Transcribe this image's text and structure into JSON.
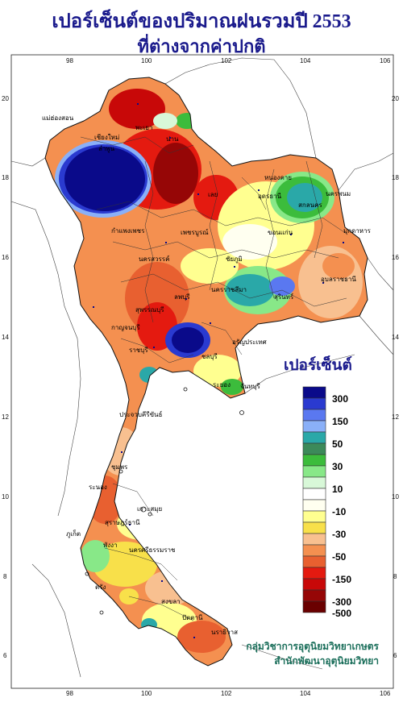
{
  "title": {
    "line1": "เปอร์เซ็นต์ของปริมาณฝนรวมปี  2553",
    "line2": "ที่ต่างจากค่าปกติ"
  },
  "axes": {
    "top_ticks": [
      "98",
      "100",
      "102",
      "104",
      "106"
    ],
    "bottom_ticks": [
      "98",
      "100",
      "102",
      "104",
      "106"
    ],
    "left_ticks": [
      "20",
      "18",
      "16",
      "14",
      "12",
      "10",
      "8",
      "6"
    ],
    "right_ticks": [
      "20",
      "18",
      "16",
      "14",
      "12",
      "10",
      "8",
      "6"
    ]
  },
  "legend": {
    "title": "เปอร์เซ็นต์",
    "items": [
      {
        "label": "300",
        "color": "#0a0a8a"
      },
      {
        "label": "",
        "color": "#2a3ad0"
      },
      {
        "label": "150",
        "color": "#5a78f0"
      },
      {
        "label": "",
        "color": "#8ab0f8"
      },
      {
        "label": "50",
        "color": "#2aa8a8"
      },
      {
        "label": "",
        "color": "#3c8a5a"
      },
      {
        "label": "30",
        "color": "#3cbc3c"
      },
      {
        "label": "",
        "color": "#88e888"
      },
      {
        "label": "10",
        "color": "#d8f8d8"
      },
      {
        "label": "",
        "color": "#ffffff"
      },
      {
        "label": "-10",
        "color": "#fffff0"
      },
      {
        "label": "",
        "color": "#ffff90"
      },
      {
        "label": "-30",
        "color": "#f8e04a"
      },
      {
        "label": "",
        "color": "#f8c090"
      },
      {
        "label": "-50",
        "color": "#f49050"
      },
      {
        "label": "",
        "color": "#e86030"
      },
      {
        "label": "-150",
        "color": "#e41a10"
      },
      {
        "label": "",
        "color": "#c80808"
      },
      {
        "label": "-300",
        "color": "#960606"
      },
      {
        "label": "-500",
        "color": "#6a0000"
      }
    ]
  },
  "places": [
    {
      "name": "แม่ฮ่องสอน"
    },
    {
      "name": "เชียงใหม่"
    },
    {
      "name": "ลำพูน"
    },
    {
      "name": "พะเยา"
    },
    {
      "name": "น่าน"
    },
    {
      "name": "หนองคาย"
    },
    {
      "name": "อุดรธานี"
    },
    {
      "name": "นครพนม"
    },
    {
      "name": "สกลนคร"
    },
    {
      "name": "มุกดาหาร"
    },
    {
      "name": "เลย"
    },
    {
      "name": "ขอนแก่น"
    },
    {
      "name": "กำแพงเพชร"
    },
    {
      "name": "เพชรบูรณ์"
    },
    {
      "name": "นครสวรรค์"
    },
    {
      "name": "ชัยภูมิ"
    },
    {
      "name": "อุบลราชธานี"
    },
    {
      "name": "นครราชสีมา"
    },
    {
      "name": "สุรินทร์"
    },
    {
      "name": "ลพบุรี"
    },
    {
      "name": "สุพรรณบุรี"
    },
    {
      "name": "กาญจนบุรี"
    },
    {
      "name": "ราชบุรี"
    },
    {
      "name": "ชลบุรี"
    },
    {
      "name": "อรัญประเทศ"
    },
    {
      "name": "ระยอง"
    },
    {
      "name": "จันทบุรี"
    },
    {
      "name": "ประจวบคีรีขันธ์"
    },
    {
      "name": "ชุมพร"
    },
    {
      "name": "ระนอง"
    },
    {
      "name": "เกาะสมุย"
    },
    {
      "name": "สุราษฎร์ธานี"
    },
    {
      "name": "ภูเก็ต"
    },
    {
      "name": "พังงา"
    },
    {
      "name": "นครศรีธรรมราช"
    },
    {
      "name": "ตรัง"
    },
    {
      "name": "สงขลา"
    },
    {
      "name": "ปัตตานี"
    },
    {
      "name": "นราธิวาส"
    }
  ],
  "credits": {
    "line1": "กลุ่มวิชาการอุตุนิยมวิทยาเกษตร",
    "line2": "สำนักพัฒนาอุตุนิยมวิทยา"
  }
}
